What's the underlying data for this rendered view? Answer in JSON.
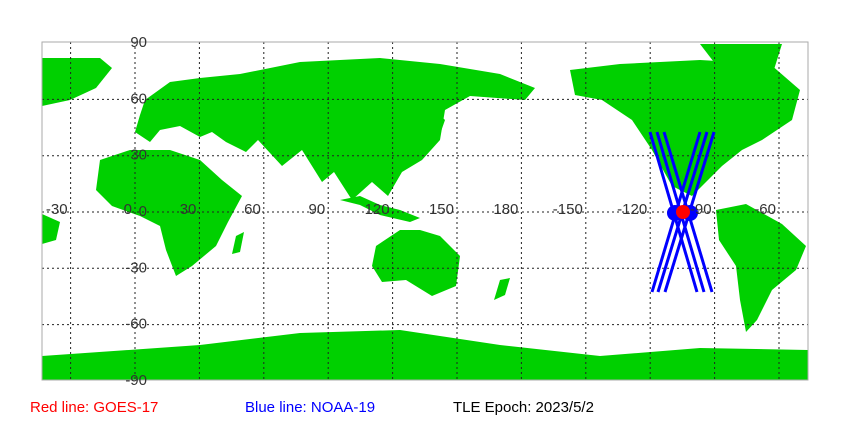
{
  "map": {
    "lon_labels": [
      "-30",
      "0",
      "30",
      "60",
      "90",
      "120",
      "150",
      "180",
      "-150",
      "-120",
      "-90",
      "-60"
    ],
    "lat_labels": [
      "90",
      "60",
      "30",
      "0",
      "-30",
      "-60",
      "-90"
    ],
    "land_color": "#00d000",
    "grid": "dotted"
  },
  "satellites": {
    "red": {
      "name": "GOES-17",
      "color": "#ff0000"
    },
    "blue": {
      "name": "NOAA-19",
      "color": "#0000ff"
    }
  },
  "legend": {
    "red_label": "Red line: GOES-17",
    "blue_label": "Blue line: NOAA-19",
    "epoch_label": "TLE Epoch: 2023/5/2"
  }
}
